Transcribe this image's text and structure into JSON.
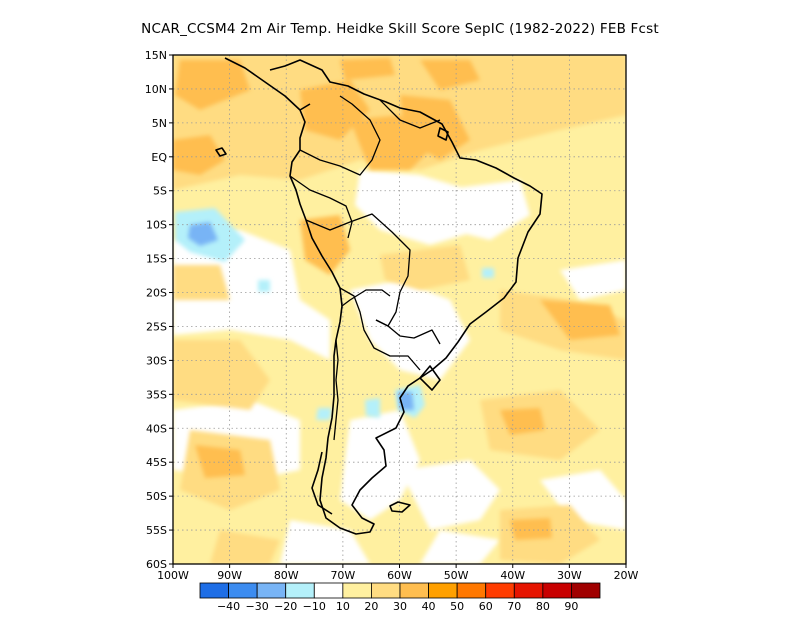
{
  "title": "NCAR_CCSM4  2m Air Temp. Heidke Skill Score SepIC (1982-2022) FEB Fcst",
  "map": {
    "lat_labels": [
      "15N",
      "10N",
      "5N",
      "EQ",
      "5S",
      "10S",
      "15S",
      "20S",
      "25S",
      "30S",
      "35S",
      "40S",
      "45S",
      "50S",
      "55S",
      "60S"
    ],
    "lon_labels": [
      "100W",
      "90W",
      "80W",
      "70W",
      "60W",
      "50W",
      "40W",
      "30W",
      "20W"
    ]
  },
  "colorbar": {
    "colors": [
      "#1e6ee6",
      "#3c8cf0",
      "#78b4f5",
      "#b4f0fa",
      "#ffffff",
      "#fff0a0",
      "#ffdc82",
      "#ffbe50",
      "#ffa000",
      "#ff7800",
      "#ff3c00",
      "#e61400",
      "#c80000",
      "#a00000"
    ],
    "tick_labels": [
      "-40",
      "-30",
      "-20",
      "-10",
      "10",
      "20",
      "30",
      "40",
      "50",
      "60",
      "70",
      "80",
      "90"
    ]
  }
}
